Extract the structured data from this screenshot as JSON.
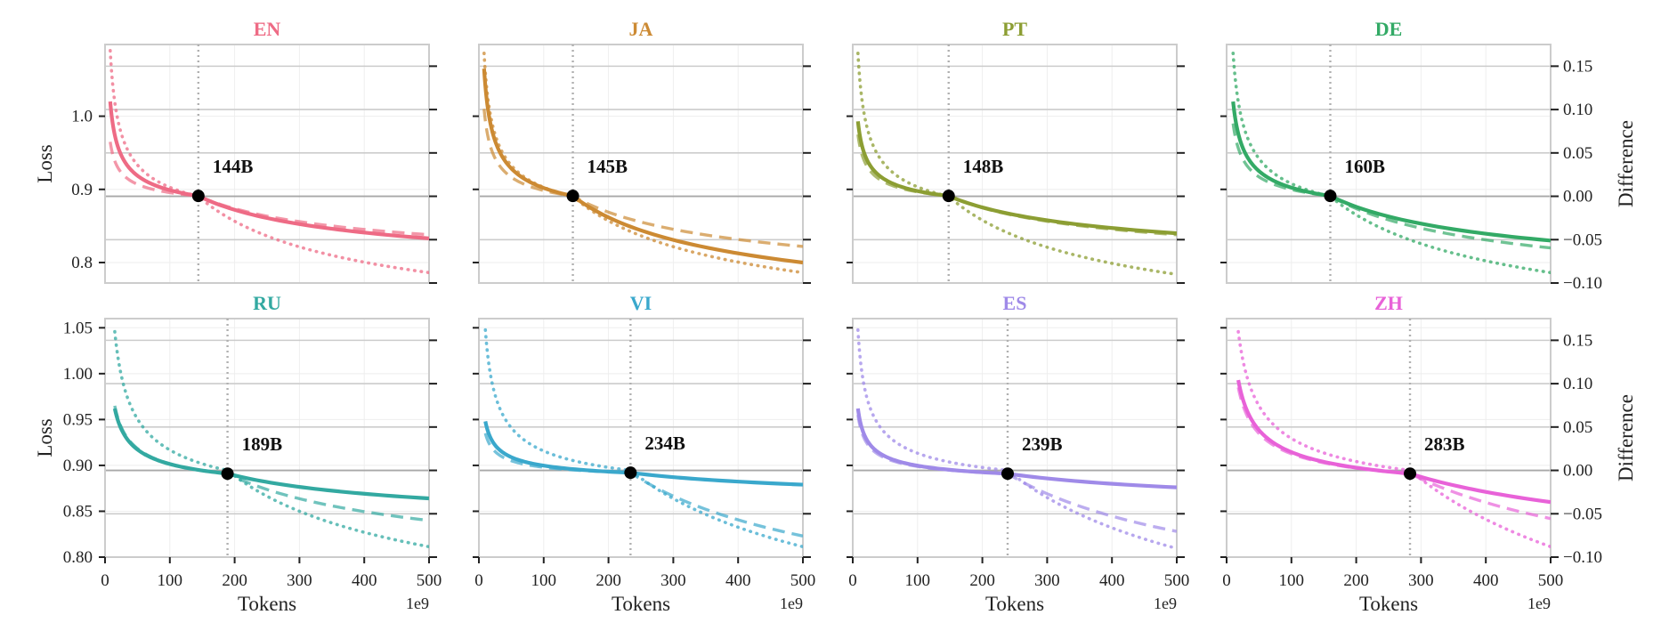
{
  "chart_data": {
    "type": "line",
    "layout": "2x4 grid of small multiples",
    "shared": {
      "xlabel": "Tokens",
      "x_exponent": "1e9",
      "xlim": [
        0,
        500
      ],
      "xticks": [
        0,
        100,
        200,
        300,
        400,
        500
      ],
      "ylabel_left": "Loss",
      "ylabel_right": "Difference",
      "right_ylim": [
        -0.1,
        0.175
      ],
      "right_yticks": [
        -0.1,
        -0.05,
        0.0,
        0.05,
        0.1,
        0.15
      ],
      "right_tick_labels": [
        "−0.10",
        "−0.05",
        "0.00",
        "0.05",
        "0.10",
        "0.15"
      ],
      "line_styles": {
        "solid": "loss curve A",
        "dashed": "loss curve B",
        "dotted": "difference curve (right axis)"
      },
      "grid": true
    },
    "rows": [
      {
        "ylim": [
          0.772,
          1.098
        ],
        "yticks": [
          0.8,
          0.9,
          1.0
        ],
        "ytick_labels": [
          "0.8",
          "0.9",
          "1.0"
        ]
      },
      {
        "ylim": [
          0.8,
          1.06
        ],
        "yticks": [
          0.8,
          0.85,
          0.9,
          0.95,
          1.0,
          1.05
        ],
        "ytick_labels": [
          "0.80",
          "0.85",
          "0.90",
          "0.95",
          "1.00",
          "1.05"
        ]
      }
    ],
    "panels": [
      {
        "title": "EN",
        "color": "#ee6b85",
        "crossover_tokens": 144,
        "crossover_label": "144B",
        "crossover_loss": 0.891,
        "start_tokens": 8,
        "solid": {
          "start": 1.02,
          "end": 0.833
        },
        "dashed": {
          "start": 0.965,
          "end": 0.838
        },
        "dotted": {
          "start": 0.168,
          "end": -0.088
        }
      },
      {
        "title": "JA",
        "color": "#cc8a33",
        "crossover_tokens": 145,
        "crossover_label": "145B",
        "crossover_loss": 0.891,
        "start_tokens": 8,
        "solid": {
          "start": 1.065,
          "end": 0.8
        },
        "dashed": {
          "start": 1.01,
          "end": 0.822
        },
        "dotted": {
          "start": 0.165,
          "end": -0.088
        }
      },
      {
        "title": "PT",
        "color": "#8c9e33",
        "crossover_tokens": 148,
        "crossover_label": "148B",
        "crossover_loss": 0.891,
        "start_tokens": 8,
        "solid": {
          "start": 0.993,
          "end": 0.84
        },
        "dashed": {
          "start": 0.975,
          "end": 0.838
        },
        "dotted": {
          "start": 0.165,
          "end": -0.09
        }
      },
      {
        "title": "DE",
        "color": "#33aa66",
        "crossover_tokens": 160,
        "crossover_label": "160B",
        "crossover_loss": 0.891,
        "start_tokens": 10,
        "solid": {
          "start": 1.02,
          "end": 0.83
        },
        "dashed": {
          "start": 0.99,
          "end": 0.82
        },
        "dotted": {
          "start": 0.165,
          "end": -0.088
        }
      },
      {
        "title": "RU",
        "color": "#33a9a1",
        "crossover_tokens": 189,
        "crossover_label": "189B",
        "crossover_loss": 0.891,
        "start_tokens": 15,
        "solid": {
          "start": 0.962,
          "end": 0.864
        },
        "dashed": {
          "start": 0.965,
          "end": 0.84
        },
        "dotted": {
          "start": 0.16,
          "end": -0.088
        }
      },
      {
        "title": "VI",
        "color": "#3aa8cc",
        "crossover_tokens": 234,
        "crossover_label": "234B",
        "crossover_loss": 0.892,
        "start_tokens": 10,
        "solid": {
          "start": 0.948,
          "end": 0.879
        },
        "dashed": {
          "start": 0.935,
          "end": 0.823
        },
        "dotted": {
          "start": 0.162,
          "end": -0.088
        }
      },
      {
        "title": "ES",
        "color": "#9f8ae8",
        "crossover_tokens": 239,
        "crossover_label": "239B",
        "crossover_loss": 0.891,
        "start_tokens": 8,
        "solid": {
          "start": 0.962,
          "end": 0.876
        },
        "dashed": {
          "start": 0.955,
          "end": 0.828
        },
        "dotted": {
          "start": 0.162,
          "end": -0.09
        }
      },
      {
        "title": "ZH",
        "color": "#e862d8",
        "crossover_tokens": 283,
        "crossover_label": "283B",
        "crossover_loss": 0.891,
        "start_tokens": 18,
        "solid": {
          "start": 0.993,
          "end": 0.86
        },
        "dashed": {
          "start": 0.985,
          "end": 0.842
        },
        "dotted": {
          "start": 0.16,
          "end": -0.088
        }
      }
    ]
  }
}
